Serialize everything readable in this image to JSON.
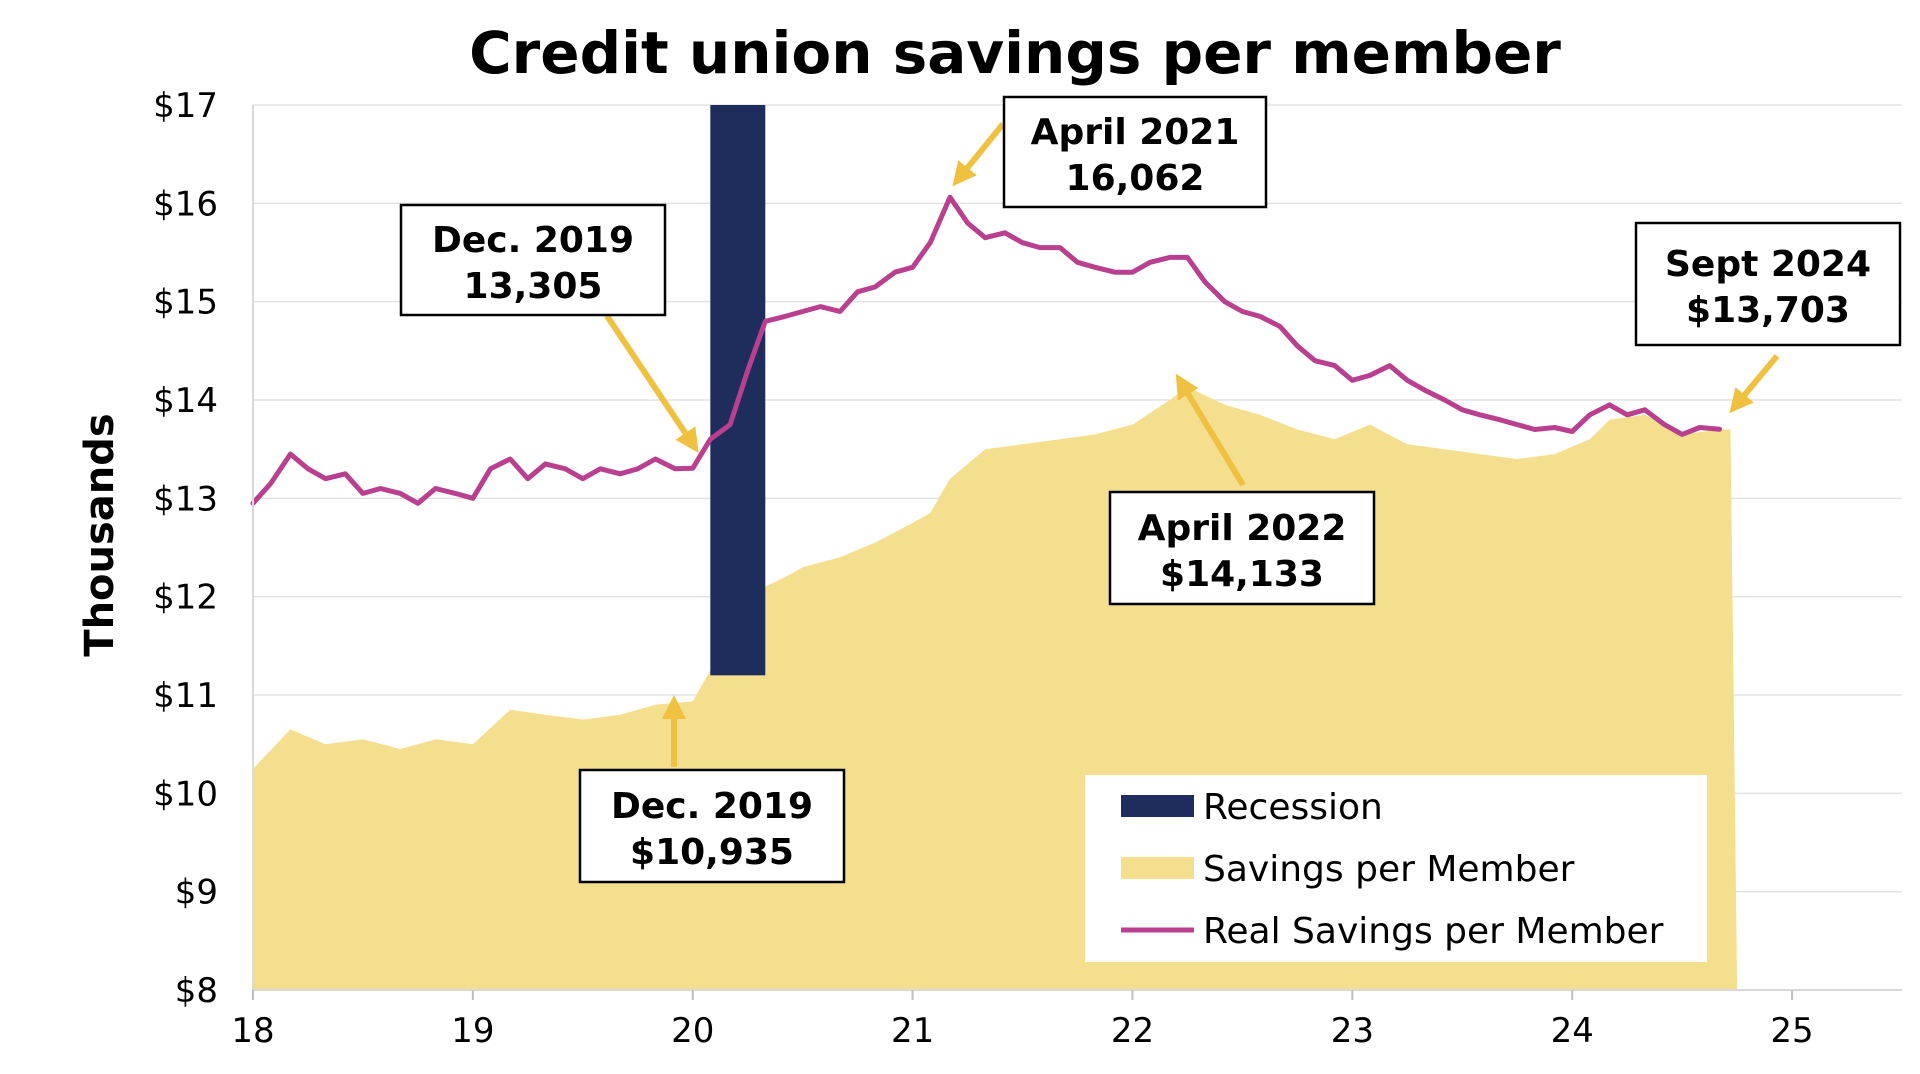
{
  "chart_data": {
    "type": "area",
    "title": "Credit union savings per member",
    "ylabel": "Thousands",
    "xlabel": "",
    "xlim": [
      18,
      25.5
    ],
    "ylim": [
      8,
      17
    ],
    "x_ticks": [
      "18",
      "19",
      "20",
      "21",
      "22",
      "23",
      "24",
      "25"
    ],
    "y_ticks": [
      "$8",
      "$9",
      "$10",
      "$11",
      "$12",
      "$13",
      "$14",
      "$15",
      "$16",
      "$17"
    ],
    "grid": "horizontal",
    "legend_position": "bottom-right",
    "colors": {
      "recession": "#1f2d5c",
      "savings": "#f3df8d",
      "real_savings": "#b8408e",
      "arrow": "#f0c040"
    },
    "recession": {
      "name": "Recession",
      "start": 20.08,
      "end": 20.33
    },
    "series": [
      {
        "name": "Savings per Member",
        "kind": "area",
        "x": [
          18.0,
          18.17,
          18.33,
          18.5,
          18.67,
          18.83,
          19.0,
          19.17,
          19.33,
          19.5,
          19.67,
          19.83,
          20.0,
          20.08,
          20.17,
          20.25,
          20.33,
          20.42,
          20.5,
          20.67,
          20.83,
          21.0,
          21.08,
          21.17,
          21.33,
          21.5,
          21.67,
          21.83,
          22.0,
          22.17,
          22.25,
          22.42,
          22.58,
          22.75,
          22.92,
          23.08,
          23.25,
          23.42,
          23.58,
          23.75,
          23.92,
          24.08,
          24.17,
          24.33,
          24.5,
          24.67,
          24.72
        ],
        "values": [
          10.25,
          10.65,
          10.5,
          10.55,
          10.45,
          10.55,
          10.5,
          10.85,
          10.8,
          10.75,
          10.8,
          10.9,
          10.935,
          11.25,
          11.3,
          11.9,
          12.1,
          12.2,
          12.3,
          12.4,
          12.55,
          12.75,
          12.85,
          13.2,
          13.5,
          13.55,
          13.6,
          13.65,
          13.75,
          14.0,
          14.133,
          13.95,
          13.85,
          13.7,
          13.6,
          13.75,
          13.55,
          13.5,
          13.45,
          13.4,
          13.45,
          13.6,
          13.8,
          13.85,
          13.65,
          13.7,
          13.7
        ]
      },
      {
        "name": "Real Savings per Member",
        "kind": "line",
        "x": [
          18.0,
          18.08,
          18.17,
          18.25,
          18.33,
          18.42,
          18.5,
          18.58,
          18.67,
          18.75,
          18.83,
          18.92,
          19.0,
          19.08,
          19.17,
          19.25,
          19.33,
          19.42,
          19.5,
          19.58,
          19.67,
          19.75,
          19.83,
          19.92,
          20.0,
          20.08,
          20.17,
          20.25,
          20.33,
          20.42,
          20.5,
          20.58,
          20.67,
          20.75,
          20.83,
          20.92,
          21.0,
          21.08,
          21.17,
          21.25,
          21.33,
          21.42,
          21.5,
          21.58,
          21.67,
          21.75,
          21.83,
          21.92,
          22.0,
          22.08,
          22.17,
          22.25,
          22.33,
          22.42,
          22.5,
          22.58,
          22.67,
          22.75,
          22.83,
          22.92,
          23.0,
          23.08,
          23.17,
          23.25,
          23.33,
          23.42,
          23.5,
          23.58,
          23.67,
          23.75,
          23.83,
          23.92,
          24.0,
          24.08,
          24.17,
          24.25,
          24.33,
          24.42,
          24.5,
          24.58,
          24.67
        ],
        "values": [
          12.95,
          13.15,
          13.45,
          13.3,
          13.2,
          13.25,
          13.05,
          13.1,
          13.05,
          12.95,
          13.1,
          13.05,
          13.0,
          13.3,
          13.4,
          13.2,
          13.35,
          13.3,
          13.2,
          13.3,
          13.25,
          13.3,
          13.4,
          13.3,
          13.305,
          13.6,
          13.75,
          14.3,
          14.8,
          14.85,
          14.9,
          14.95,
          14.9,
          15.1,
          15.15,
          15.3,
          15.35,
          15.6,
          16.062,
          15.8,
          15.65,
          15.7,
          15.6,
          15.55,
          15.55,
          15.4,
          15.35,
          15.3,
          15.3,
          15.4,
          15.45,
          15.45,
          15.2,
          15.0,
          14.9,
          14.85,
          14.75,
          14.55,
          14.4,
          14.35,
          14.2,
          14.25,
          14.35,
          14.2,
          14.1,
          14.0,
          13.9,
          13.85,
          13.8,
          13.75,
          13.7,
          13.72,
          13.68,
          13.85,
          13.95,
          13.85,
          13.9,
          13.75,
          13.65,
          13.72,
          13.703
        ]
      }
    ],
    "annotations": [
      {
        "line1": "April 2021",
        "line2": "16,062"
      },
      {
        "line1": "Dec. 2019",
        "line2": "13,305"
      },
      {
        "line1": "Sept 2024",
        "line2": "$13,703"
      },
      {
        "line1": "April 2022",
        "line2": "$14,133"
      },
      {
        "line1": "Dec. 2019",
        "line2": "$10,935"
      }
    ],
    "legend": [
      "Recession",
      "Savings per Member",
      "Real Savings per Member"
    ]
  }
}
